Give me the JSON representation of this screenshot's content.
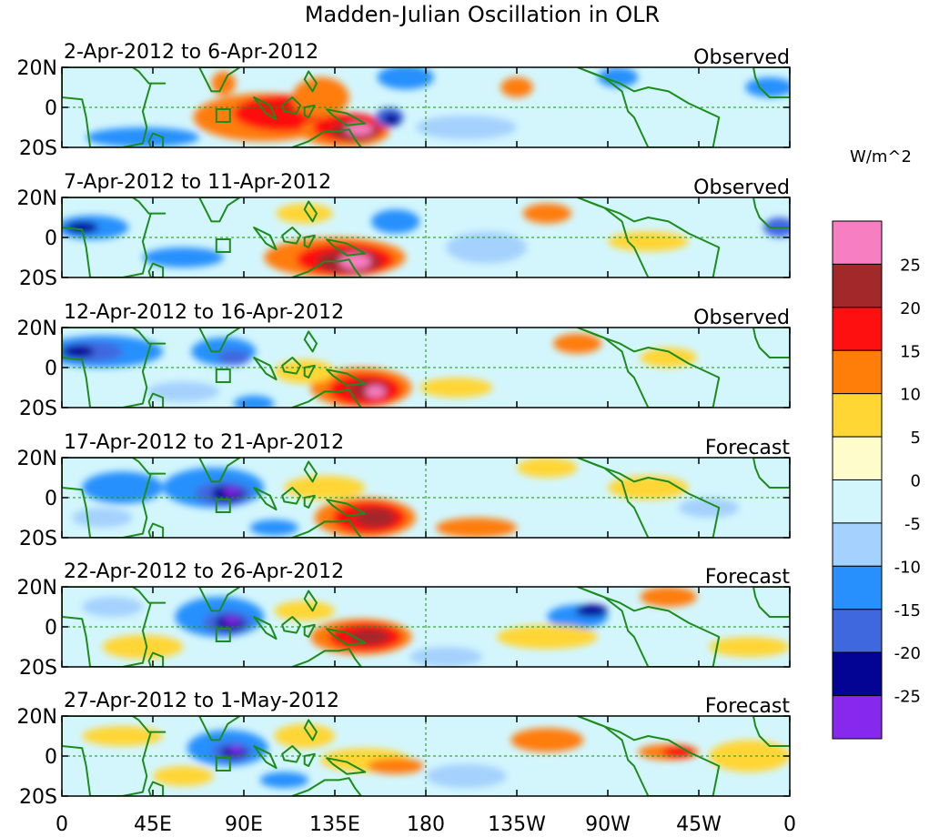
{
  "title": "Madden-Julian Oscillation in OLR",
  "chart_data": {
    "type": "heatmap",
    "title": "Madden-Julian Oscillation in OLR",
    "x_ticks": [
      "0",
      "45E",
      "90E",
      "135E",
      "180",
      "135W",
      "90W",
      "45W",
      "0"
    ],
    "y_ticks": [
      "20N",
      "0",
      "20S"
    ],
    "colorbar": {
      "unit": "W/m^2",
      "tick_labels": [
        "25",
        "20",
        "15",
        "10",
        "5",
        "0",
        "-5",
        "-10",
        "-15",
        "-20",
        "-25"
      ],
      "colors": [
        "#f77ec0",
        "#a3282a",
        "#ff1010",
        "#ff7d08",
        "#ffd634",
        "#fffccb",
        "#d3f6fd",
        "#a4d1fd",
        "#2790fd",
        "#3f67de",
        "#030394",
        "#8728ee"
      ]
    },
    "panels": [
      {
        "period": "2-Apr-2012 to 6-Apr-2012",
        "status": "Observed"
      },
      {
        "period": "7-Apr-2012 to 11-Apr-2012",
        "status": "Observed"
      },
      {
        "period": "12-Apr-2012 to 16-Apr-2012",
        "status": "Observed"
      },
      {
        "period": "17-Apr-2012 to 21-Apr-2012",
        "status": "Forecast"
      },
      {
        "period": "22-Apr-2012 to 26-Apr-2012",
        "status": "Forecast"
      },
      {
        "period": "27-Apr-2012 to 1-May-2012",
        "status": "Forecast"
      }
    ]
  }
}
